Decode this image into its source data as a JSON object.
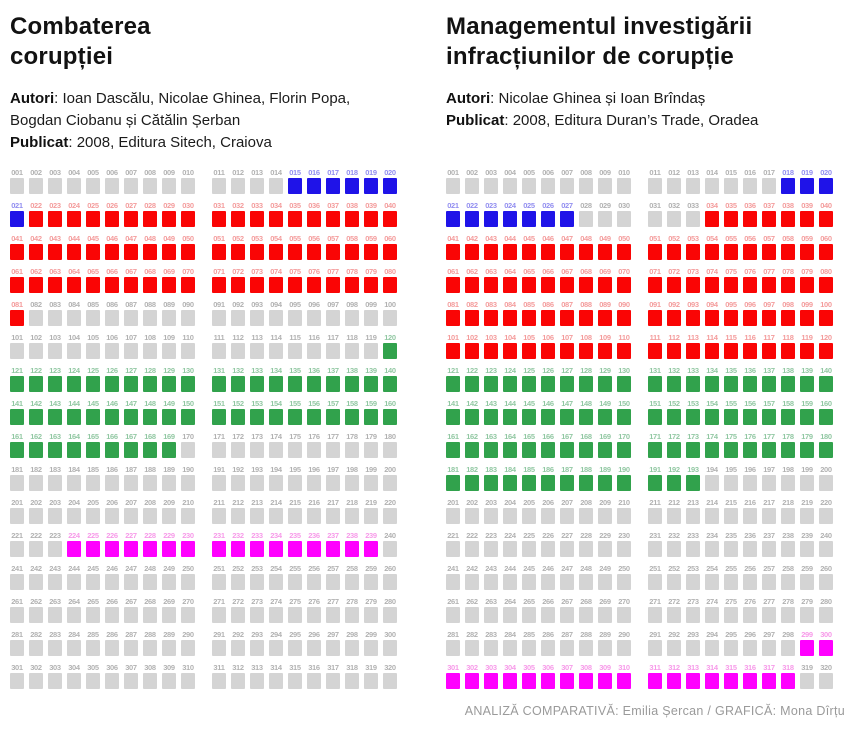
{
  "colors": {
    "squares": {
      "gray": "#d4d4d4",
      "blue": "#1f13e8",
      "red": "#fa0505",
      "green": "#31a24c",
      "magenta": "#ff00ff"
    },
    "labels": {
      "gray": "#b2b2b2",
      "blue": "#928ef0",
      "red": "#f49c9c",
      "green": "#92c8a3",
      "magenta": "#f79ae9"
    }
  },
  "panels": [
    {
      "title": "Combaterea\ncorupției",
      "authors_label": "Autori",
      "authors_rest": ": Ioan Dascălu, Nicolae Ghinea, Florin Popa, Bogdan Ciobanu și Cătălin Șerban",
      "published_label": "Publicat",
      "published_rest": ": 2008, Editura Sitech, Craiova"
    },
    {
      "title": "Managementul investigării\ninfracțiunilor de corupție",
      "authors_label": "Autori",
      "authors_rest": ": Nicolae Ghinea și Ioan Brîndaș",
      "published_label": "Publicat",
      "published_rest": ": 2008, Editura Duran’s Trade, Oradea"
    }
  ],
  "footer": {
    "credit": "ANALIZĂ COMPARATIVĂ: Emilia Șercan / GRAFICĂ: Mona Dîrțu"
  },
  "chart_data": [
    {
      "type": "waffle",
      "title": "Combaterea corupției",
      "total_pages": 320,
      "columns_per_row": 20,
      "group_size": 10,
      "first_label": "001",
      "last_label": "320",
      "segments": [
        {
          "from": 1,
          "to": 14,
          "color_key": "gray"
        },
        {
          "from": 15,
          "to": 21,
          "color_key": "blue"
        },
        {
          "from": 22,
          "to": 81,
          "color_key": "red"
        },
        {
          "from": 82,
          "to": 119,
          "color_key": "gray"
        },
        {
          "from": 120,
          "to": 169,
          "color_key": "green"
        },
        {
          "from": 170,
          "to": 223,
          "color_key": "gray"
        },
        {
          "from": 224,
          "to": 239,
          "color_key": "magenta"
        },
        {
          "from": 240,
          "to": 320,
          "color_key": "gray"
        }
      ]
    },
    {
      "type": "waffle",
      "title": "Managementul investigării infracțiunilor de corupție",
      "total_pages": 320,
      "columns_per_row": 20,
      "group_size": 10,
      "first_label": "001",
      "last_label": "320",
      "segments": [
        {
          "from": 1,
          "to": 17,
          "color_key": "gray"
        },
        {
          "from": 18,
          "to": 27,
          "color_key": "blue"
        },
        {
          "from": 28,
          "to": 33,
          "color_key": "gray"
        },
        {
          "from": 34,
          "to": 120,
          "color_key": "red"
        },
        {
          "from": 121,
          "to": 193,
          "color_key": "green"
        },
        {
          "from": 194,
          "to": 298,
          "color_key": "gray"
        },
        {
          "from": 299,
          "to": 318,
          "color_key": "magenta"
        },
        {
          "from": 319,
          "to": 320,
          "color_key": "gray"
        }
      ]
    }
  ]
}
